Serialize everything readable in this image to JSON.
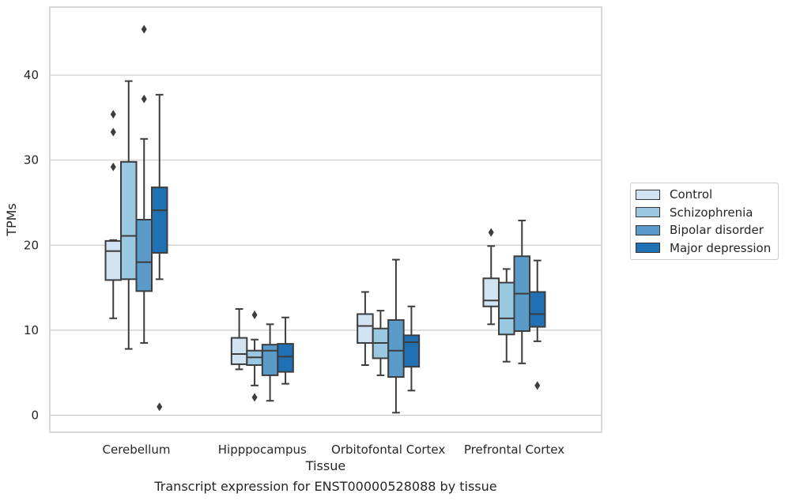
{
  "figure": {
    "caption": "Transcript expression for ENST00000528088 by tissue"
  },
  "chart_data": {
    "type": "box",
    "xlabel": "Tissue",
    "ylabel": "TPMs",
    "ylim": [
      -2,
      48
    ],
    "yticks": [
      0,
      10,
      20,
      30,
      40
    ],
    "grid": "horizontal",
    "legend_position": "right",
    "categories": [
      "Cerebellum",
      "Hipppocampus",
      "Orbitofontal Cortex",
      "Prefrontal Cortex"
    ],
    "series": [
      {
        "name": "Control",
        "color": "#d2e3f3",
        "boxes": [
          {
            "category": "Cerebellum",
            "whisker_low": 11.4,
            "q1": 15.9,
            "median": 19.3,
            "q3": 20.5,
            "whisker_high": 20.6,
            "outliers": [
              29.2,
              33.3,
              35.4
            ]
          },
          {
            "category": "Hipppocampus",
            "whisker_low": 5.4,
            "q1": 6.0,
            "median": 7.2,
            "q3": 9.1,
            "whisker_high": 12.5,
            "outliers": []
          },
          {
            "category": "Orbitofontal Cortex",
            "whisker_low": 5.9,
            "q1": 8.5,
            "median": 10.5,
            "q3": 11.9,
            "whisker_high": 14.5,
            "outliers": []
          },
          {
            "category": "Prefrontal Cortex",
            "whisker_low": 10.7,
            "q1": 12.8,
            "median": 13.5,
            "q3": 16.1,
            "whisker_high": 19.9,
            "outliers": [
              21.5
            ]
          }
        ]
      },
      {
        "name": "Schizophrenia",
        "color": "#9ac8e0",
        "boxes": [
          {
            "category": "Cerebellum",
            "whisker_low": 7.8,
            "q1": 16.0,
            "median": 21.1,
            "q3": 29.8,
            "whisker_high": 39.3,
            "outliers": []
          },
          {
            "category": "Hipppocampus",
            "whisker_low": 3.5,
            "q1": 5.9,
            "median": 6.8,
            "q3": 7.6,
            "whisker_high": 8.9,
            "outliers": [
              11.8,
              2.1
            ]
          },
          {
            "category": "Orbitofontal Cortex",
            "whisker_low": 4.7,
            "q1": 6.7,
            "median": 8.5,
            "q3": 10.2,
            "whisker_high": 12.3,
            "outliers": []
          },
          {
            "category": "Prefrontal Cortex",
            "whisker_low": 6.3,
            "q1": 9.5,
            "median": 11.4,
            "q3": 15.6,
            "whisker_high": 17.2,
            "outliers": []
          }
        ]
      },
      {
        "name": "Bipolar disorder",
        "color": "#5a9bc9",
        "boxes": [
          {
            "category": "Cerebellum",
            "whisker_low": 8.5,
            "q1": 14.6,
            "median": 18.0,
            "q3": 23.0,
            "whisker_high": 32.5,
            "outliers": [
              37.2,
              45.4
            ]
          },
          {
            "category": "Hipppocampus",
            "whisker_low": 1.7,
            "q1": 4.7,
            "median": 7.6,
            "q3": 8.3,
            "whisker_high": 10.7,
            "outliers": []
          },
          {
            "category": "Orbitofontal Cortex",
            "whisker_low": 0.3,
            "q1": 4.5,
            "median": 7.6,
            "q3": 11.2,
            "whisker_high": 18.3,
            "outliers": []
          },
          {
            "category": "Prefrontal Cortex",
            "whisker_low": 6.1,
            "q1": 9.9,
            "median": 14.3,
            "q3": 18.7,
            "whisker_high": 22.9,
            "outliers": []
          }
        ]
      },
      {
        "name": "Major depression",
        "color": "#2070b4",
        "boxes": [
          {
            "category": "Cerebellum",
            "whisker_low": 16.0,
            "q1": 19.1,
            "median": 24.1,
            "q3": 26.8,
            "whisker_high": 37.7,
            "outliers": [
              1.0
            ]
          },
          {
            "category": "Hipppocampus",
            "whisker_low": 3.7,
            "q1": 5.1,
            "median": 6.9,
            "q3": 8.4,
            "whisker_high": 11.5,
            "outliers": []
          },
          {
            "category": "Orbitofontal Cortex",
            "whisker_low": 2.9,
            "q1": 5.7,
            "median": 8.6,
            "q3": 9.4,
            "whisker_high": 12.8,
            "outliers": []
          },
          {
            "category": "Prefrontal Cortex",
            "whisker_low": 8.7,
            "q1": 10.4,
            "median": 11.9,
            "q3": 14.5,
            "whisker_high": 18.2,
            "outliers": [
              3.5
            ]
          }
        ]
      }
    ]
  }
}
